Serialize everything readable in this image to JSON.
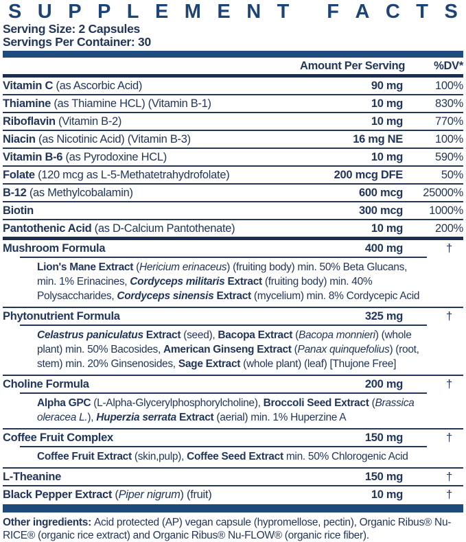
{
  "header": {
    "title": "SUPPLEMENT FACTS",
    "serving_size": "Serving Size: 2 Capsules",
    "servings_per_container": "Servings Per Container: 30"
  },
  "columns": {
    "amount": "Amount Per Serving",
    "dv": "%DV*"
  },
  "colors": {
    "title_blue": "#1e4377",
    "text_navy": "#22365c",
    "bar_medium_blue": "#1e4c7e",
    "bar_dark_navy": "#1b2e4f",
    "bar_bottom_blue": "#1d4a7b",
    "background": "#ffffff"
  },
  "nutrients": [
    {
      "name": [
        {
          "t": "Vitamin C ",
          "b": 1
        },
        {
          "t": "(as Ascorbic Acid)"
        }
      ],
      "amount": "90 mg",
      "dv": "100%"
    },
    {
      "name": [
        {
          "t": "Thiamine ",
          "b": 1
        },
        {
          "t": "(as Thiamine HCL) (Vitamin B-1)"
        }
      ],
      "amount": "10 mg",
      "dv": "830%"
    },
    {
      "name": [
        {
          "t": "Riboflavin ",
          "b": 1
        },
        {
          "t": "(Vitamin B-2)"
        }
      ],
      "amount": "10 mg",
      "dv": "770%"
    },
    {
      "name": [
        {
          "t": "Niacin ",
          "b": 1
        },
        {
          "t": "(as Nicotinic Acid) (Vitamin B-3)"
        }
      ],
      "amount": "16 mg NE",
      "dv": "100%"
    },
    {
      "name": [
        {
          "t": "Vitamin B-6 ",
          "b": 1
        },
        {
          "t": "(as Pyrodoxine HCL)"
        }
      ],
      "amount": "10 mg",
      "dv": "590%"
    },
    {
      "name": [
        {
          "t": "Folate ",
          "b": 1
        },
        {
          "t": "(120 mcg as L-5-Methatetrahydrofolate)"
        }
      ],
      "amount": "200 mcg DFE",
      "dv": "50%"
    },
    {
      "name": [
        {
          "t": "B-12 ",
          "b": 1
        },
        {
          "t": "(as Methylcobalamin)"
        }
      ],
      "amount": "600 mcg",
      "dv": "25000%"
    },
    {
      "name": [
        {
          "t": "Biotin",
          "b": 1
        }
      ],
      "amount": "300 mcg",
      "dv": "1000%"
    },
    {
      "name": [
        {
          "t": "Pantothenic Acid ",
          "b": 1
        },
        {
          "t": "(as D-Calcium Pantothenate)"
        }
      ],
      "amount": "10 mg",
      "dv": "200%"
    }
  ],
  "formulas": [
    {
      "name": [
        {
          "t": "Mushroom Formula",
          "b": 1
        }
      ],
      "amount": "400 mg",
      "dv": "†",
      "detail": [
        {
          "t": "Lion's Mane Extract ",
          "b": 1
        },
        {
          "t": "("
        },
        {
          "t": "Hericium erinaceus",
          "i": 1
        },
        {
          "t": ") (fruiting body) min. 50% Beta Glucans, min. 1% Erinacines, "
        },
        {
          "t": "Cordyceps militaris",
          "b": 1,
          "i": 1
        },
        {
          "t": " Extract ",
          "b": 1
        },
        {
          "t": "(fruiting body) min. 40% Polysaccharides, "
        },
        {
          "t": "Cordyceps sinensis",
          "b": 1,
          "i": 1
        },
        {
          "t": " Extract ",
          "b": 1
        },
        {
          "t": "(mycelium) min. 8% Cordycepic Acid"
        }
      ]
    },
    {
      "name": [
        {
          "t": "Phytonutrient Formula",
          "b": 1
        }
      ],
      "amount": "325 mg",
      "dv": "†",
      "detail": [
        {
          "t": "Celastrus paniculatus",
          "b": 1,
          "i": 1
        },
        {
          "t": " Extract ",
          "b": 1
        },
        {
          "t": "(seed), "
        },
        {
          "t": "Bacopa Extract ",
          "b": 1
        },
        {
          "t": "("
        },
        {
          "t": "Bacopa monnieri",
          "i": 1
        },
        {
          "t": ") (whole plant) min. 50% Bacosides, "
        },
        {
          "t": "American Ginseng Extract ",
          "b": 1
        },
        {
          "t": "("
        },
        {
          "t": "Panax quinquefolius",
          "i": 1
        },
        {
          "t": ") (root, stem) min. 20% Ginsenosides, "
        },
        {
          "t": "Sage Extract ",
          "b": 1
        },
        {
          "t": "(whole plant) (leaf) [Thujone Free]"
        }
      ]
    },
    {
      "name": [
        {
          "t": "Choline Formula",
          "b": 1
        }
      ],
      "amount": "200 mg",
      "dv": "†",
      "detail": [
        {
          "t": "Alpha GPC ",
          "b": 1
        },
        {
          "t": "(L-Alpha-Glycerylphosphorylcholine), "
        },
        {
          "t": "Broccoli Seed Extract ",
          "b": 1
        },
        {
          "t": "("
        },
        {
          "t": "Brassica oleracea L.",
          "i": 1
        },
        {
          "t": "), "
        },
        {
          "t": "Huperzia serrata",
          "b": 1,
          "i": 1
        },
        {
          "t": " Extract ",
          "b": 1
        },
        {
          "t": "(aerial) min. 1% Huperzine A"
        }
      ]
    },
    {
      "name": [
        {
          "t": "Coffee Fruit Complex",
          "b": 1
        }
      ],
      "amount": "150 mg",
      "dv": "†",
      "detail": [
        {
          "t": "Coffee Fruit Extract ",
          "b": 1
        },
        {
          "t": "(skin,pulp), "
        },
        {
          "t": "Coffee Seed Extract ",
          "b": 1
        },
        {
          "t": "min. 50% Chlorogenic Acid"
        }
      ]
    },
    {
      "name": [
        {
          "t": "L-Theanine",
          "b": 1
        }
      ],
      "amount": "150 mg",
      "dv": "†"
    },
    {
      "name": [
        {
          "t": "Black Pepper Extract ",
          "b": 1
        },
        {
          "t": "("
        },
        {
          "t": "Piper nigrum",
          "i": 1
        },
        {
          "t": ") (fruit)"
        }
      ],
      "amount": "10 mg",
      "dv": "†"
    }
  ],
  "footnote": [
    {
      "t": "Other ingredients: ",
      "b": 1
    },
    {
      "t": "Acid protected (AP) vegan capsule (hypromellose, pectin), Organic Ribus® Nu-RICE® (organic rice extract) and Organic Ribus® Nu-FLOW® (organic rice fiber)."
    }
  ]
}
